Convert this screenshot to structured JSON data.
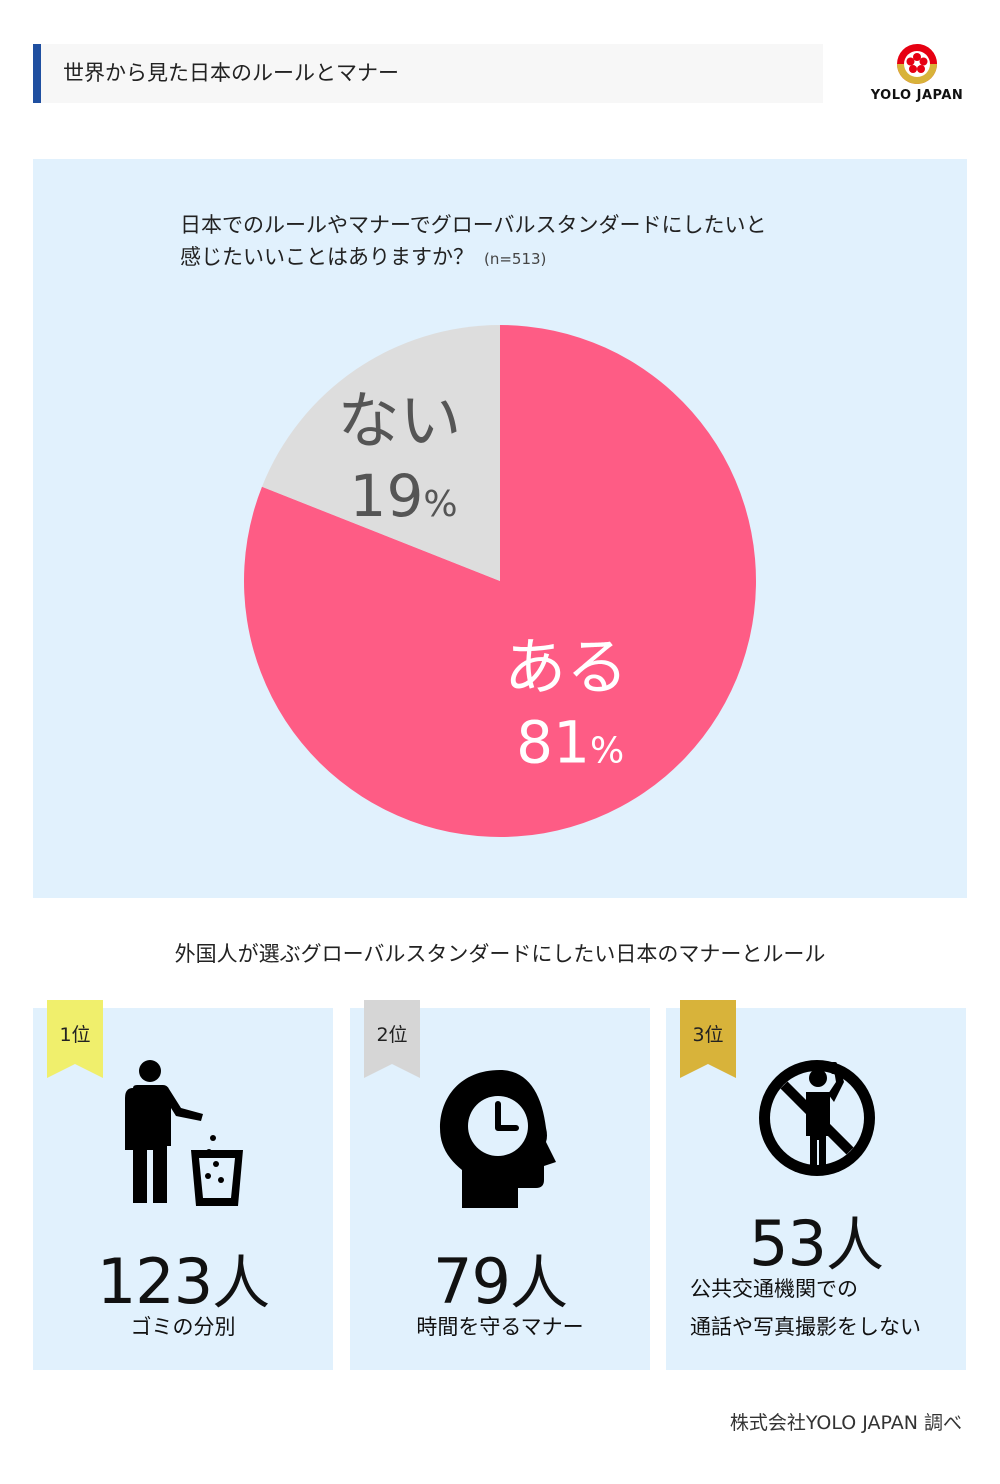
{
  "header": {
    "title": "世界から見た日本のルールとマナー"
  },
  "logo": {
    "text": "YOLO JAPAN"
  },
  "question": {
    "line1": "日本でのルールやマナーでグローバルスタンダードにしたいと",
    "line2": "感じたいいことはありますか？",
    "n": "(n=513)"
  },
  "chart_data": {
    "type": "pie",
    "slices": [
      {
        "label": "ある",
        "value": 81,
        "value_text": "81",
        "color": "#fe5c85",
        "text_color": "#ffffff"
      },
      {
        "label": "ない",
        "value": 19,
        "value_text": "19",
        "color": "#dddddd",
        "text_color": "#555555"
      }
    ],
    "unit": "%"
  },
  "section": {
    "title": "外国人が選ぶグローバルスタンダードにしたい日本のマナーとルール"
  },
  "ranks": [
    {
      "badge": "1位",
      "badge_color": "#f0ef6c",
      "icon": "trash-disposal-icon",
      "count": "123",
      "unit": "人",
      "label_line1": "ゴミの分別",
      "label_line2": ""
    },
    {
      "badge": "2位",
      "badge_color": "#d6d6d6",
      "icon": "head-clock-icon",
      "count": "79",
      "unit": "人",
      "label_line1": "時間を守るマナー",
      "label_line2": ""
    },
    {
      "badge": "3位",
      "badge_color": "#d8b33a",
      "icon": "no-phone-call-icon",
      "count": "53",
      "unit": "人",
      "label_line1": "公共交通機関での",
      "label_line2": "通話や写真撮影をしない"
    }
  ],
  "credit": {
    "text": "株式会社YOLO JAPAN 調べ"
  }
}
